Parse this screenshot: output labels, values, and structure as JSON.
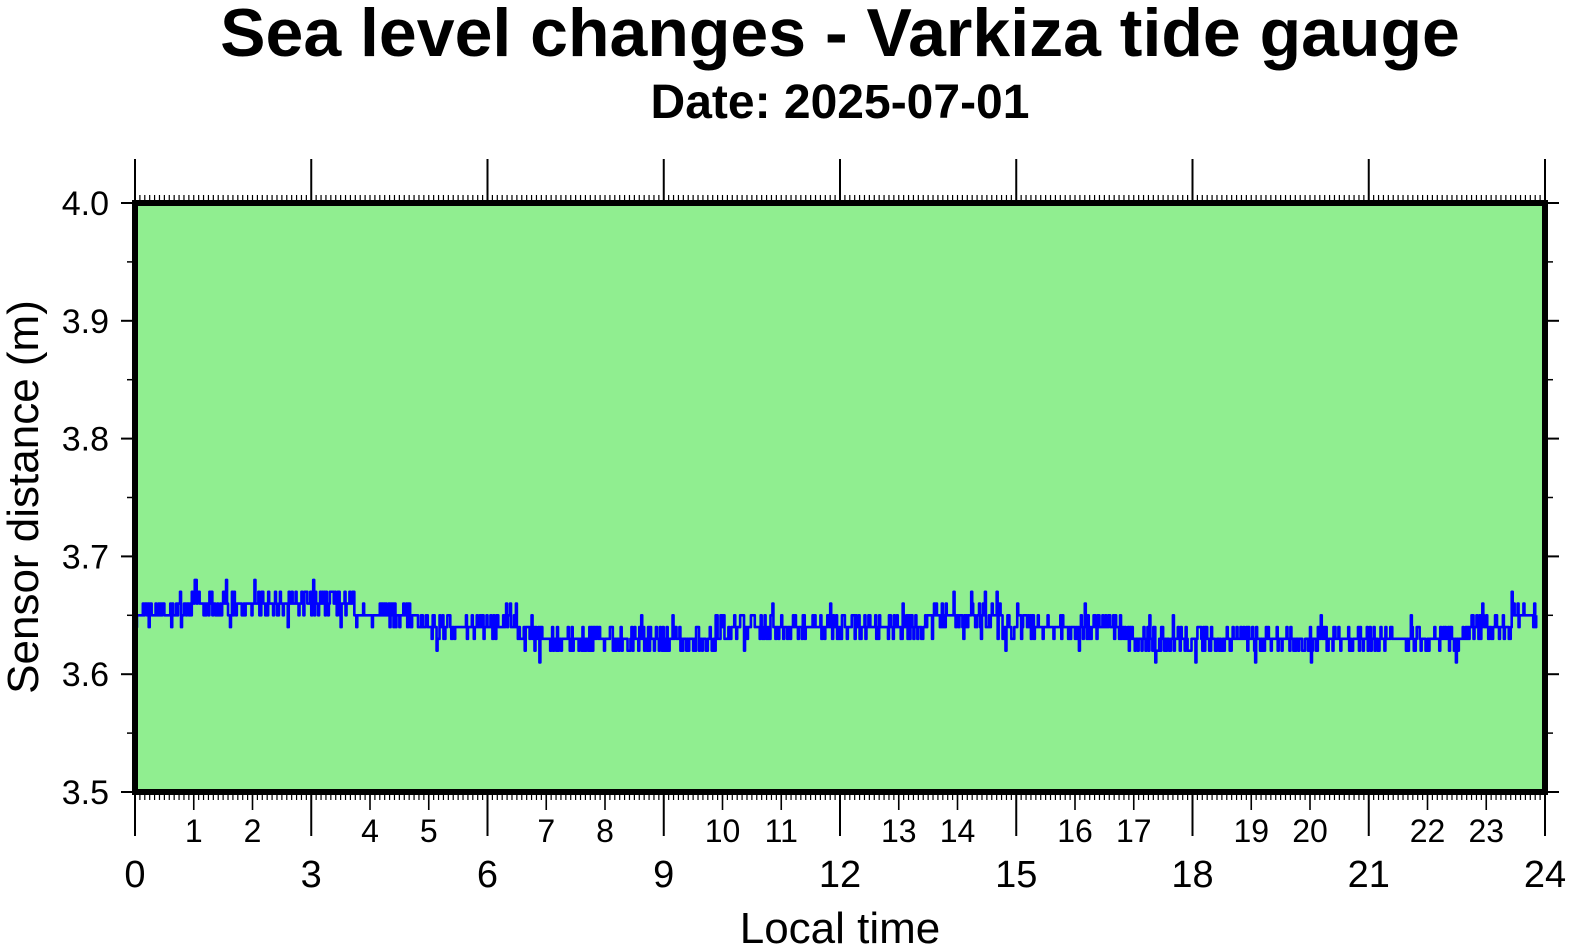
{
  "chart_data": {
    "type": "line",
    "title": "Sea level changes - Varkiza tide gauge",
    "subtitle": "Date: 2025-07-01",
    "xlabel": "Local time",
    "ylabel": "Sensor distance (m)",
    "xlim": [
      0,
      24
    ],
    "ylim": [
      3.5,
      4.0
    ],
    "grid": false,
    "x_major_ticks": [
      "0",
      "3",
      "6",
      "9",
      "12",
      "15",
      "18",
      "21",
      "24"
    ],
    "x_minor_ticks": [
      "1",
      "2",
      "4",
      "5",
      "7",
      "8",
      "10",
      "11",
      "13",
      "14",
      "16",
      "17",
      "19",
      "20",
      "22",
      "23"
    ],
    "y_ticks": [
      "3.5",
      "3.6",
      "3.7",
      "3.8",
      "3.9",
      "4.0"
    ],
    "background_color": "#90ee90",
    "line_color": "#0000ff",
    "series": [
      {
        "x": [
          0.0,
          0.5,
          1.0,
          1.5,
          2.0,
          2.5,
          3.0,
          3.5,
          4.0,
          4.5,
          5.0,
          5.5,
          6.0,
          6.5,
          7.0,
          7.5,
          8.0,
          8.5,
          9.0,
          9.5,
          10.0,
          10.5,
          11.0,
          11.5,
          12.0,
          12.5,
          13.0,
          13.5,
          14.0,
          14.5,
          15.0,
          15.5,
          16.0,
          16.5,
          17.0,
          17.5,
          18.0,
          18.5,
          19.0,
          19.5,
          20.0,
          20.5,
          21.0,
          21.5,
          22.0,
          22.5,
          23.0,
          23.5,
          23.85
        ],
        "values": [
          3.655,
          3.654,
          3.657,
          3.663,
          3.662,
          3.665,
          3.66,
          3.658,
          3.652,
          3.648,
          3.643,
          3.638,
          3.636,
          3.635,
          3.634,
          3.633,
          3.631,
          3.629,
          3.63,
          3.632,
          3.636,
          3.638,
          3.64,
          3.641,
          3.642,
          3.643,
          3.644,
          3.645,
          3.646,
          3.646,
          3.644,
          3.642,
          3.64,
          3.637,
          3.634,
          3.631,
          3.629,
          3.628,
          3.63,
          3.632,
          3.634,
          3.635,
          3.633,
          3.628,
          3.63,
          3.634,
          3.639,
          3.646,
          3.654
        ]
      }
    ]
  }
}
